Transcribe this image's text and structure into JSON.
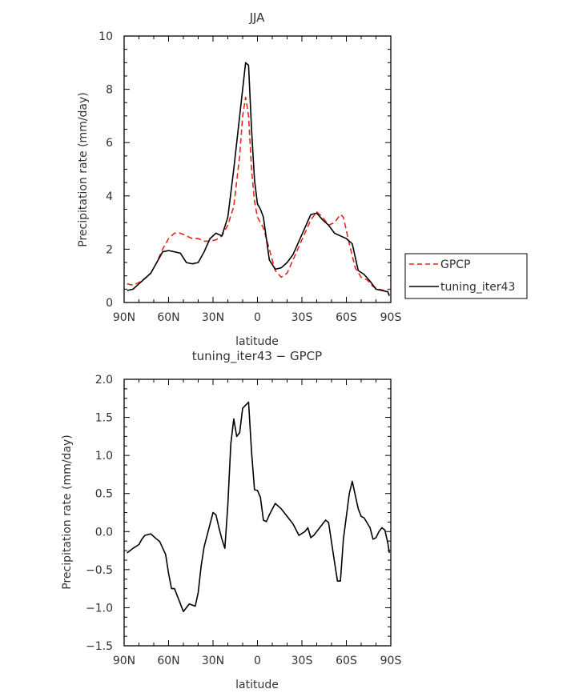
{
  "chart_data": [
    {
      "type": "line",
      "title": "JJA",
      "xlabel": "latitude",
      "ylabel": "Precipitation rate (mm/day)",
      "xlim": [
        90,
        -90
      ],
      "ylim": [
        0,
        10
      ],
      "x_ticks": [
        {
          "value": 90,
          "label": "90N"
        },
        {
          "value": 60,
          "label": "60N"
        },
        {
          "value": 30,
          "label": "30N"
        },
        {
          "value": 0,
          "label": "0"
        },
        {
          "value": -30,
          "label": "30S"
        },
        {
          "value": -60,
          "label": "60S"
        },
        {
          "value": -90,
          "label": "90S"
        }
      ],
      "y_ticks": [
        {
          "value": 0,
          "label": "0"
        },
        {
          "value": 2,
          "label": "2"
        },
        {
          "value": 4,
          "label": "4"
        },
        {
          "value": 6,
          "label": "6"
        },
        {
          "value": 8,
          "label": "8"
        },
        {
          "value": 10,
          "label": "10"
        }
      ],
      "legend_position": "right",
      "series": [
        {
          "name": "GPCP",
          "color": "#e8241c",
          "dash": "dashed",
          "x": [
            88,
            84,
            80,
            76,
            72,
            68,
            64,
            60,
            56,
            52,
            48,
            44,
            40,
            36,
            32,
            28,
            24,
            20,
            16,
            12,
            10,
            8,
            6,
            4,
            2,
            0,
            -2,
            -4,
            -8,
            -12,
            -16,
            -20,
            -24,
            -28,
            -32,
            -36,
            -40,
            -44,
            -48,
            -52,
            -56,
            -58,
            -62,
            -66,
            -70,
            -74,
            -78,
            -82,
            -86,
            -89
          ],
          "y": [
            0.7,
            0.65,
            0.75,
            0.9,
            1.1,
            1.5,
            2.0,
            2.4,
            2.6,
            2.6,
            2.5,
            2.4,
            2.4,
            2.3,
            2.3,
            2.35,
            2.5,
            2.9,
            3.6,
            5.5,
            7.0,
            7.7,
            7.0,
            5.0,
            3.8,
            3.2,
            3.0,
            2.8,
            2.0,
            1.2,
            0.95,
            1.1,
            1.6,
            2.1,
            2.6,
            3.1,
            3.4,
            3.2,
            2.9,
            3.0,
            3.3,
            3.2,
            2.2,
            1.3,
            0.95,
            0.85,
            0.6,
            0.5,
            0.45,
            0.5
          ]
        },
        {
          "name": "tuning_iter43",
          "color": "#000000",
          "dash": "solid",
          "x": [
            88,
            84,
            80,
            76,
            72,
            68,
            64,
            60,
            56,
            52,
            48,
            44,
            40,
            36,
            32,
            28,
            24,
            20,
            16,
            12,
            10,
            8,
            6,
            4,
            2,
            0,
            -2,
            -4,
            -8,
            -12,
            -16,
            -20,
            -24,
            -28,
            -32,
            -36,
            -40,
            -44,
            -48,
            -52,
            -56,
            -60,
            -64,
            -68,
            -72,
            -76,
            -80,
            -84,
            -88,
            -89
          ],
          "y": [
            0.45,
            0.5,
            0.7,
            0.9,
            1.1,
            1.5,
            1.9,
            1.95,
            1.9,
            1.85,
            1.5,
            1.45,
            1.5,
            1.9,
            2.4,
            2.6,
            2.5,
            3.2,
            5.0,
            7.0,
            8.0,
            9.0,
            8.9,
            6.5,
            4.6,
            3.7,
            3.5,
            3.2,
            1.6,
            1.25,
            1.3,
            1.5,
            1.8,
            2.3,
            2.8,
            3.3,
            3.35,
            3.1,
            2.9,
            2.6,
            2.5,
            2.4,
            2.2,
            1.2,
            1.05,
            0.8,
            0.5,
            0.45,
            0.4,
            0.25
          ]
        }
      ]
    },
    {
      "type": "line",
      "title": "tuning_iter43 − GPCP",
      "xlabel": "latitude",
      "ylabel": "Precipitation rate (mm/day)",
      "xlim": [
        90,
        -90
      ],
      "ylim": [
        -1.5,
        2.0
      ],
      "x_ticks": [
        {
          "value": 90,
          "label": "90N"
        },
        {
          "value": 60,
          "label": "60N"
        },
        {
          "value": 30,
          "label": "30N"
        },
        {
          "value": 0,
          "label": "0"
        },
        {
          "value": -30,
          "label": "30S"
        },
        {
          "value": -60,
          "label": "60S"
        },
        {
          "value": -90,
          "label": "90S"
        }
      ],
      "y_ticks": [
        {
          "value": -1.5,
          "label": "−1.5"
        },
        {
          "value": -1.0,
          "label": "−1.0"
        },
        {
          "value": -0.5,
          "label": "−0.5"
        },
        {
          "value": 0.0,
          "label": "0.0"
        },
        {
          "value": 0.5,
          "label": "0.5"
        },
        {
          "value": 1.0,
          "label": "1.0"
        },
        {
          "value": 1.5,
          "label": "1.5"
        },
        {
          "value": 2.0,
          "label": "2.0"
        }
      ],
      "series": [
        {
          "color": "#000000",
          "dash": "solid",
          "x": [
            88,
            84,
            80,
            78,
            76,
            72,
            68,
            66,
            62,
            60,
            58,
            56,
            52,
            50,
            48,
            46,
            42,
            40,
            38,
            36,
            32,
            30,
            28,
            26,
            24,
            22,
            20,
            18,
            16,
            14,
            12,
            10,
            8,
            6,
            4,
            2,
            0,
            -2,
            -4,
            -6,
            -8,
            -12,
            -16,
            -20,
            -24,
            -28,
            -32,
            -34,
            -36,
            -38,
            -42,
            -46,
            -48,
            -52,
            -54,
            -56,
            -58,
            -62,
            -64,
            -68,
            -70,
            -72,
            -76,
            -78,
            -80,
            -82,
            -84,
            -86,
            -88,
            -89
          ],
          "y": [
            -0.28,
            -0.22,
            -0.17,
            -0.1,
            -0.05,
            -0.03,
            -0.1,
            -0.13,
            -0.3,
            -0.55,
            -0.75,
            -0.75,
            -0.95,
            -1.05,
            -1.0,
            -0.95,
            -0.98,
            -0.8,
            -0.45,
            -0.2,
            0.1,
            0.25,
            0.22,
            0.05,
            -0.1,
            -0.22,
            0.35,
            1.15,
            1.48,
            1.25,
            1.3,
            1.62,
            1.66,
            1.7,
            1.05,
            0.55,
            0.54,
            0.45,
            0.15,
            0.13,
            0.22,
            0.37,
            0.3,
            0.2,
            0.1,
            -0.05,
            0.0,
            0.05,
            -0.08,
            -0.05,
            0.05,
            0.15,
            0.12,
            -0.4,
            -0.65,
            -0.65,
            -0.1,
            0.5,
            0.66,
            0.3,
            0.2,
            0.18,
            0.05,
            -0.1,
            -0.08,
            0.0,
            0.05,
            0.02,
            -0.15,
            -0.28
          ]
        }
      ]
    }
  ]
}
